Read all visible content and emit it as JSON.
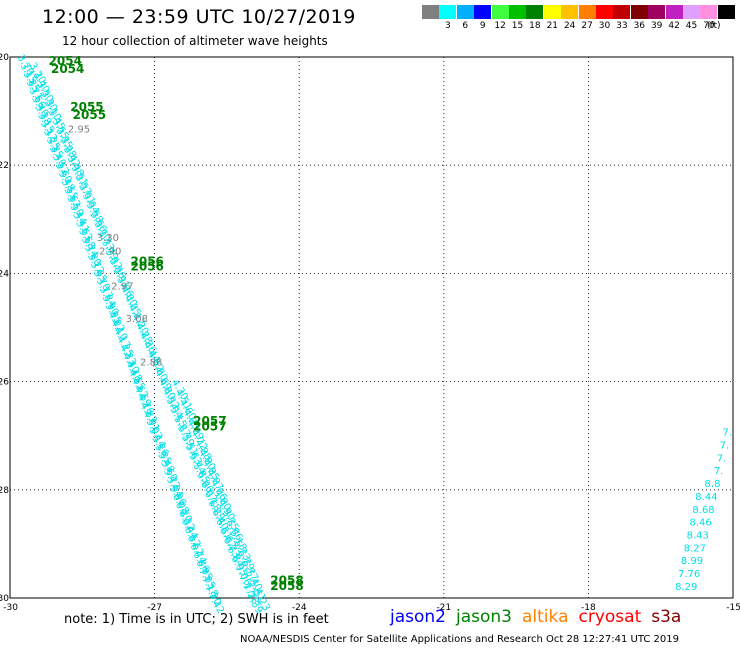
{
  "header": {
    "title": "12:00 — 23:59 UTC 10/27/2019",
    "subtitle": "12 hour collection of altimeter wave heights"
  },
  "legend": {
    "unit": "(ft)",
    "items": [
      {
        "label": "",
        "color": "#808080"
      },
      {
        "label": "3",
        "color": "#00ffff"
      },
      {
        "label": "6",
        "color": "#00b0ff"
      },
      {
        "label": "9",
        "color": "#0000ff"
      },
      {
        "label": "12",
        "color": "#40ff40"
      },
      {
        "label": "15",
        "color": "#00c000"
      },
      {
        "label": "18",
        "color": "#008000"
      },
      {
        "label": "21",
        "color": "#ffff00"
      },
      {
        "label": "24",
        "color": "#ffc000"
      },
      {
        "label": "27",
        "color": "#ff8000"
      },
      {
        "label": "30",
        "color": "#ff0000"
      },
      {
        "label": "33",
        "color": "#c00000"
      },
      {
        "label": "36",
        "color": "#800000"
      },
      {
        "label": "39",
        "color": "#a00060"
      },
      {
        "label": "42",
        "color": "#c020c0"
      },
      {
        "label": "45",
        "color": "#e0a0ff"
      },
      {
        "label": "70",
        "color": "#ff90e0"
      },
      {
        "label": "",
        "color": "#000000"
      }
    ]
  },
  "footer": {
    "note": "note: 1) Time is in UTC; 2) SWH is in feet",
    "satellites": [
      {
        "name": "jason2",
        "color": "#0000ff"
      },
      {
        "name": "jason3",
        "color": "#008000"
      },
      {
        "name": "altika",
        "color": "#ff8000"
      },
      {
        "name": "cryosat",
        "color": "#ff0000"
      },
      {
        "name": "s3a",
        "color": "#800000"
      }
    ],
    "credit": "NOAA/NESDIS Center for Satellite Applications and Research    Oct 28 12:27:41 UTC 2019"
  },
  "chart_data": {
    "type": "scatter",
    "xlim": [
      -30,
      -15
    ],
    "ylim": [
      -30,
      -20
    ],
    "x_ticks": [
      "-30",
      "-27",
      "-24",
      "-21",
      "-18",
      "-15"
    ],
    "y_ticks": [
      "-20",
      "-22",
      "-24",
      "-26",
      "-28",
      "-30"
    ],
    "grid": true,
    "track_colors": {
      "cyan": "#00e0e8",
      "gray": "#808080",
      "time": "#008000"
    },
    "time_labels": [
      {
        "text": "2054",
        "lon": -29.2,
        "lat": -20.15
      },
      {
        "text": "2054",
        "lon": -29.15,
        "lat": -20.3
      },
      {
        "text": "2055",
        "lon": -28.75,
        "lat": -21.0
      },
      {
        "text": "2055",
        "lon": -28.7,
        "lat": -21.15
      },
      {
        "text": "2056",
        "lon": -27.5,
        "lat": -23.85
      },
      {
        "text": "2056",
        "lon": -27.5,
        "lat": -23.95
      },
      {
        "text": "2057",
        "lon": -26.2,
        "lat": -26.8
      },
      {
        "text": "2057",
        "lon": -26.2,
        "lat": -26.9
      },
      {
        "text": "2058",
        "lon": -24.6,
        "lat": -29.75
      },
      {
        "text": "2058",
        "lon": -24.6,
        "lat": -29.85
      }
    ],
    "highlighted_points": [
      {
        "text": "2.95",
        "lon": -28.8,
        "lat": -21.4
      },
      {
        "text": "3.30",
        "lon": -28.2,
        "lat": -23.4
      },
      {
        "text": "2.90",
        "lon": -28.15,
        "lat": -23.65
      },
      {
        "text": "2.97",
        "lon": -27.9,
        "lat": -24.3
      },
      {
        "text": "3.08",
        "lon": -27.6,
        "lat": -24.9
      },
      {
        "text": "2.88",
        "lon": -27.3,
        "lat": -25.7
      }
    ],
    "track_a_values": [
      "3.70",
      "3.15",
      "3.85",
      "3.71",
      "3.66",
      "3.40",
      "3.38",
      "3.15",
      "3.12",
      "3.25",
      "3.35",
      "3.40",
      "3.52",
      "3.60",
      "3.48",
      "3.55",
      "3.62",
      "3.50",
      "3.44",
      "3.41",
      "3.63",
      "3.68",
      "3.74",
      "3.80",
      "3.72",
      "3.65",
      "3.70",
      "3.77",
      "3.84",
      "3.90",
      "3.95",
      "4.02",
      "4.10",
      "4.17",
      "4.25",
      "4.33",
      "4.40",
      "4.48",
      "4.55",
      "4.62",
      "4.69",
      "4.76",
      "4.83",
      "4.91",
      "5.02",
      "5.14",
      "5.26",
      "5.35",
      "5.48",
      "5.60",
      "5.72",
      "5.84",
      "5.96",
      "6.08",
      "6.20",
      "6.32",
      "6.44",
      "6.52",
      "6.62",
      "6.74",
      "6.86",
      "6.95",
      "7.05",
      "7.18",
      "7.30",
      "7.42"
    ],
    "track_b_values": [
      "3.20",
      "3.40",
      "3.50",
      "3.30",
      "3.10",
      "3.45",
      "3.55",
      "3.35",
      "3.28",
      "3.42",
      "3.48",
      "3.51",
      "3.57",
      "3.61",
      "3.64",
      "3.58",
      "3.66",
      "3.70",
      "3.73",
      "3.79",
      "3.82",
      "3.86",
      "3.91",
      "3.96",
      "4.00",
      "4.05",
      "4.12",
      "4.20",
      "4.28",
      "4.36",
      "4.44",
      "4.52",
      "4.60",
      "4.69",
      "4.80",
      "4.92",
      "5.04",
      "5.15",
      "5.27",
      "5.39",
      "5.51",
      "5.63",
      "5.74",
      "5.85",
      "5.96",
      "6.07",
      "6.18",
      "6.29",
      "6.40",
      "6.51",
      "6.62",
      "6.73",
      "6.84",
      "6.95",
      "7.06",
      "7.17",
      "7.28",
      "7.39"
    ],
    "track_c_values": [
      "4.30",
      "4.51",
      "4.60",
      "4.83",
      "4.89",
      "4.72",
      "4.88",
      "4.80",
      "4.85",
      "4.87",
      "4.66",
      "4.80",
      "4.90",
      "5.25",
      "5.06",
      "5.18",
      "5.23",
      "5.29",
      "5.77",
      "5.40",
      "5.41",
      "5.23"
    ],
    "east_values": [
      "7.",
      "7.",
      "7.",
      "7.",
      "8.8",
      "8.44",
      "8.68",
      "8.46",
      "8.43",
      "8.27",
      "8.99",
      "7.76",
      "8.29"
    ]
  }
}
